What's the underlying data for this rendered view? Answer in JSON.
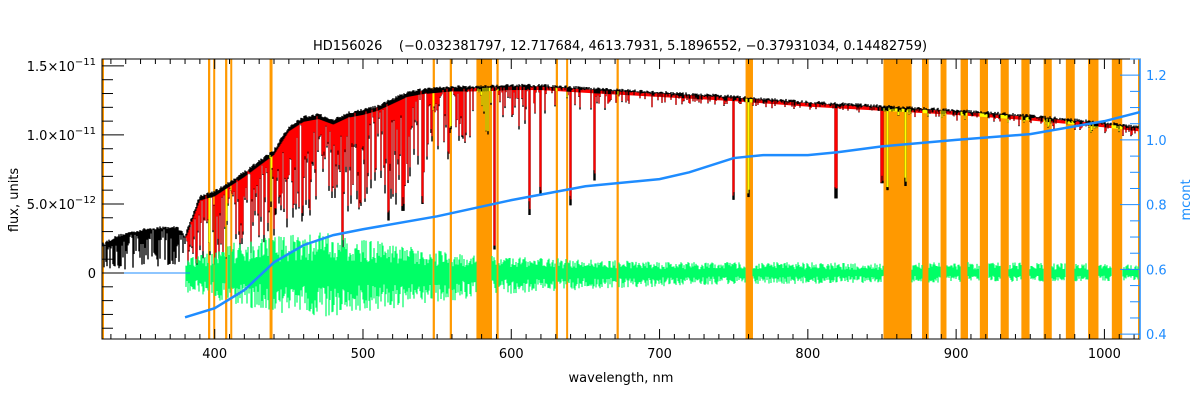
{
  "chart_data": {
    "type": "line",
    "title": "HD156026    (−0.032381797, 12.717684, 4613.7931, 5.1896552, −0.37931034, 0.14482759)",
    "xlabel": "wavelength, nm",
    "ylabel": "flux, units",
    "y2label": "mcont",
    "flux_unit_factor": 1e-12,
    "xlim": [
      324,
      1024
    ],
    "ylim": [
      -4.78,
      15.5
    ],
    "y2lim": [
      0.385,
      1.25
    ],
    "xticks": [
      400,
      500,
      600,
      700,
      800,
      900,
      1000
    ],
    "yticks": [
      {
        "value": 15,
        "mantissa": "1.5×10",
        "exp": "−11"
      },
      {
        "value": 10,
        "mantissa": "1.0×10",
        "exp": "−11"
      },
      {
        "value": 5,
        "mantissa": "5.0×10",
        "exp": "−12"
      },
      {
        "value": 0,
        "mantissa": "0",
        "exp": ""
      }
    ],
    "y2ticks": [
      "0.4",
      "0.6",
      "0.8",
      "1.0",
      "1.2"
    ],
    "colors": {
      "observed": "#000000",
      "model": "#ff0000",
      "model_masked": "#ffff00",
      "residual": "#00ff66",
      "mcont": "#1e8cff",
      "mask": "#ff9900"
    },
    "mask_bands": [
      [
        395.5,
        397
      ],
      [
        399,
        400
      ],
      [
        407,
        408.5
      ],
      [
        410.5,
        411.5
      ],
      [
        437,
        439
      ],
      [
        547,
        548.5
      ],
      [
        558.5,
        560
      ],
      [
        576.5,
        587
      ],
      [
        590,
        591.5
      ],
      [
        630,
        631.5
      ],
      [
        637,
        638
      ],
      [
        671,
        672.5
      ],
      [
        758,
        763
      ],
      [
        851,
        870
      ],
      [
        877,
        881.5
      ],
      [
        889.5,
        893.5
      ],
      [
        903,
        908
      ],
      [
        916,
        921.5
      ],
      [
        930,
        935.5
      ],
      [
        944,
        949.5
      ],
      [
        959,
        964.5
      ],
      [
        974,
        980
      ],
      [
        989,
        996
      ],
      [
        1005,
        1012
      ]
    ],
    "observed_envelope": [
      [
        324,
        0.3,
        2.0
      ],
      [
        335,
        0.3,
        2.6
      ],
      [
        345,
        0.2,
        2.9
      ],
      [
        355,
        0.3,
        3.1
      ],
      [
        365,
        0.2,
        3.2
      ],
      [
        375,
        0.3,
        3.2
      ],
      [
        380,
        0.4,
        2.6
      ],
      [
        390,
        0.0,
        5.5
      ],
      [
        400,
        0.5,
        5.8
      ],
      [
        410,
        0.8,
        6.5
      ],
      [
        420,
        1.0,
        7.2
      ],
      [
        430,
        1.5,
        8.0
      ],
      [
        440,
        2.0,
        8.8
      ],
      [
        450,
        2.5,
        10.5
      ],
      [
        460,
        3.0,
        11.2
      ],
      [
        470,
        3.5,
        11.4
      ],
      [
        480,
        4.5,
        11.0
      ],
      [
        490,
        3.5,
        11.5
      ],
      [
        500,
        5.0,
        11.7
      ],
      [
        510,
        5.5,
        12.0
      ],
      [
        520,
        4.0,
        12.5
      ],
      [
        530,
        6.0,
        13.0
      ],
      [
        540,
        7.0,
        13.2
      ],
      [
        550,
        7.5,
        13.3
      ],
      [
        560,
        8.5,
        13.4
      ],
      [
        580,
        9.5,
        13.4
      ],
      [
        600,
        10.0,
        13.5
      ],
      [
        620,
        11.0,
        13.5
      ],
      [
        650,
        11.5,
        13.3
      ],
      [
        700,
        12.0,
        13.0
      ],
      [
        750,
        12.0,
        12.7
      ],
      [
        800,
        11.8,
        12.3
      ],
      [
        850,
        11.5,
        12.0
      ],
      [
        900,
        11.0,
        11.7
      ],
      [
        950,
        10.5,
        11.3
      ],
      [
        1000,
        10.0,
        10.8
      ],
      [
        1024,
        9.8,
        10.5
      ]
    ],
    "strong_lines": [
      [
        486,
        1.5
      ],
      [
        517,
        3.8
      ],
      [
        527,
        4.5
      ],
      [
        540,
        5.0
      ],
      [
        589,
        1.7
      ],
      [
        612,
        4.2
      ],
      [
        620,
        5.6
      ],
      [
        640,
        4.9
      ],
      [
        656,
        6.7
      ],
      [
        750,
        5.3
      ],
      [
        760,
        5.5
      ],
      [
        819,
        5.4
      ],
      [
        850,
        6.5
      ],
      [
        854,
        6.0
      ],
      [
        866,
        6.3
      ]
    ],
    "residual_envelope": [
      [
        380,
        -1.5,
        1.0
      ],
      [
        400,
        -2.0,
        1.8
      ],
      [
        420,
        -2.5,
        2.5
      ],
      [
        450,
        -3.0,
        2.8
      ],
      [
        480,
        -3.2,
        3.0
      ],
      [
        500,
        -2.8,
        2.5
      ],
      [
        530,
        -2.5,
        2.0
      ],
      [
        560,
        -2.0,
        1.5
      ],
      [
        600,
        -1.5,
        1.2
      ],
      [
        650,
        -1.2,
        1.0
      ],
      [
        700,
        -1.0,
        0.8
      ],
      [
        750,
        -0.8,
        0.8
      ],
      [
        800,
        -0.8,
        0.8
      ],
      [
        850,
        -0.7,
        0.7
      ],
      [
        900,
        -0.7,
        0.8
      ],
      [
        1000,
        -0.6,
        0.7
      ],
      [
        1024,
        -0.5,
        0.6
      ]
    ],
    "mcont": [
      [
        380,
        0.452
      ],
      [
        400,
        0.48
      ],
      [
        420,
        0.536
      ],
      [
        440,
        0.622
      ],
      [
        460,
        0.675
      ],
      [
        480,
        0.706
      ],
      [
        500,
        0.724
      ],
      [
        550,
        0.764
      ],
      [
        600,
        0.814
      ],
      [
        650,
        0.857
      ],
      [
        700,
        0.879
      ],
      [
        720,
        0.9
      ],
      [
        750,
        0.944
      ],
      [
        770,
        0.953
      ],
      [
        800,
        0.953
      ],
      [
        820,
        0.962
      ],
      [
        850,
        0.98
      ],
      [
        900,
        1.0
      ],
      [
        950,
        1.018
      ],
      [
        1000,
        1.058
      ],
      [
        1024,
        1.086
      ]
    ]
  }
}
